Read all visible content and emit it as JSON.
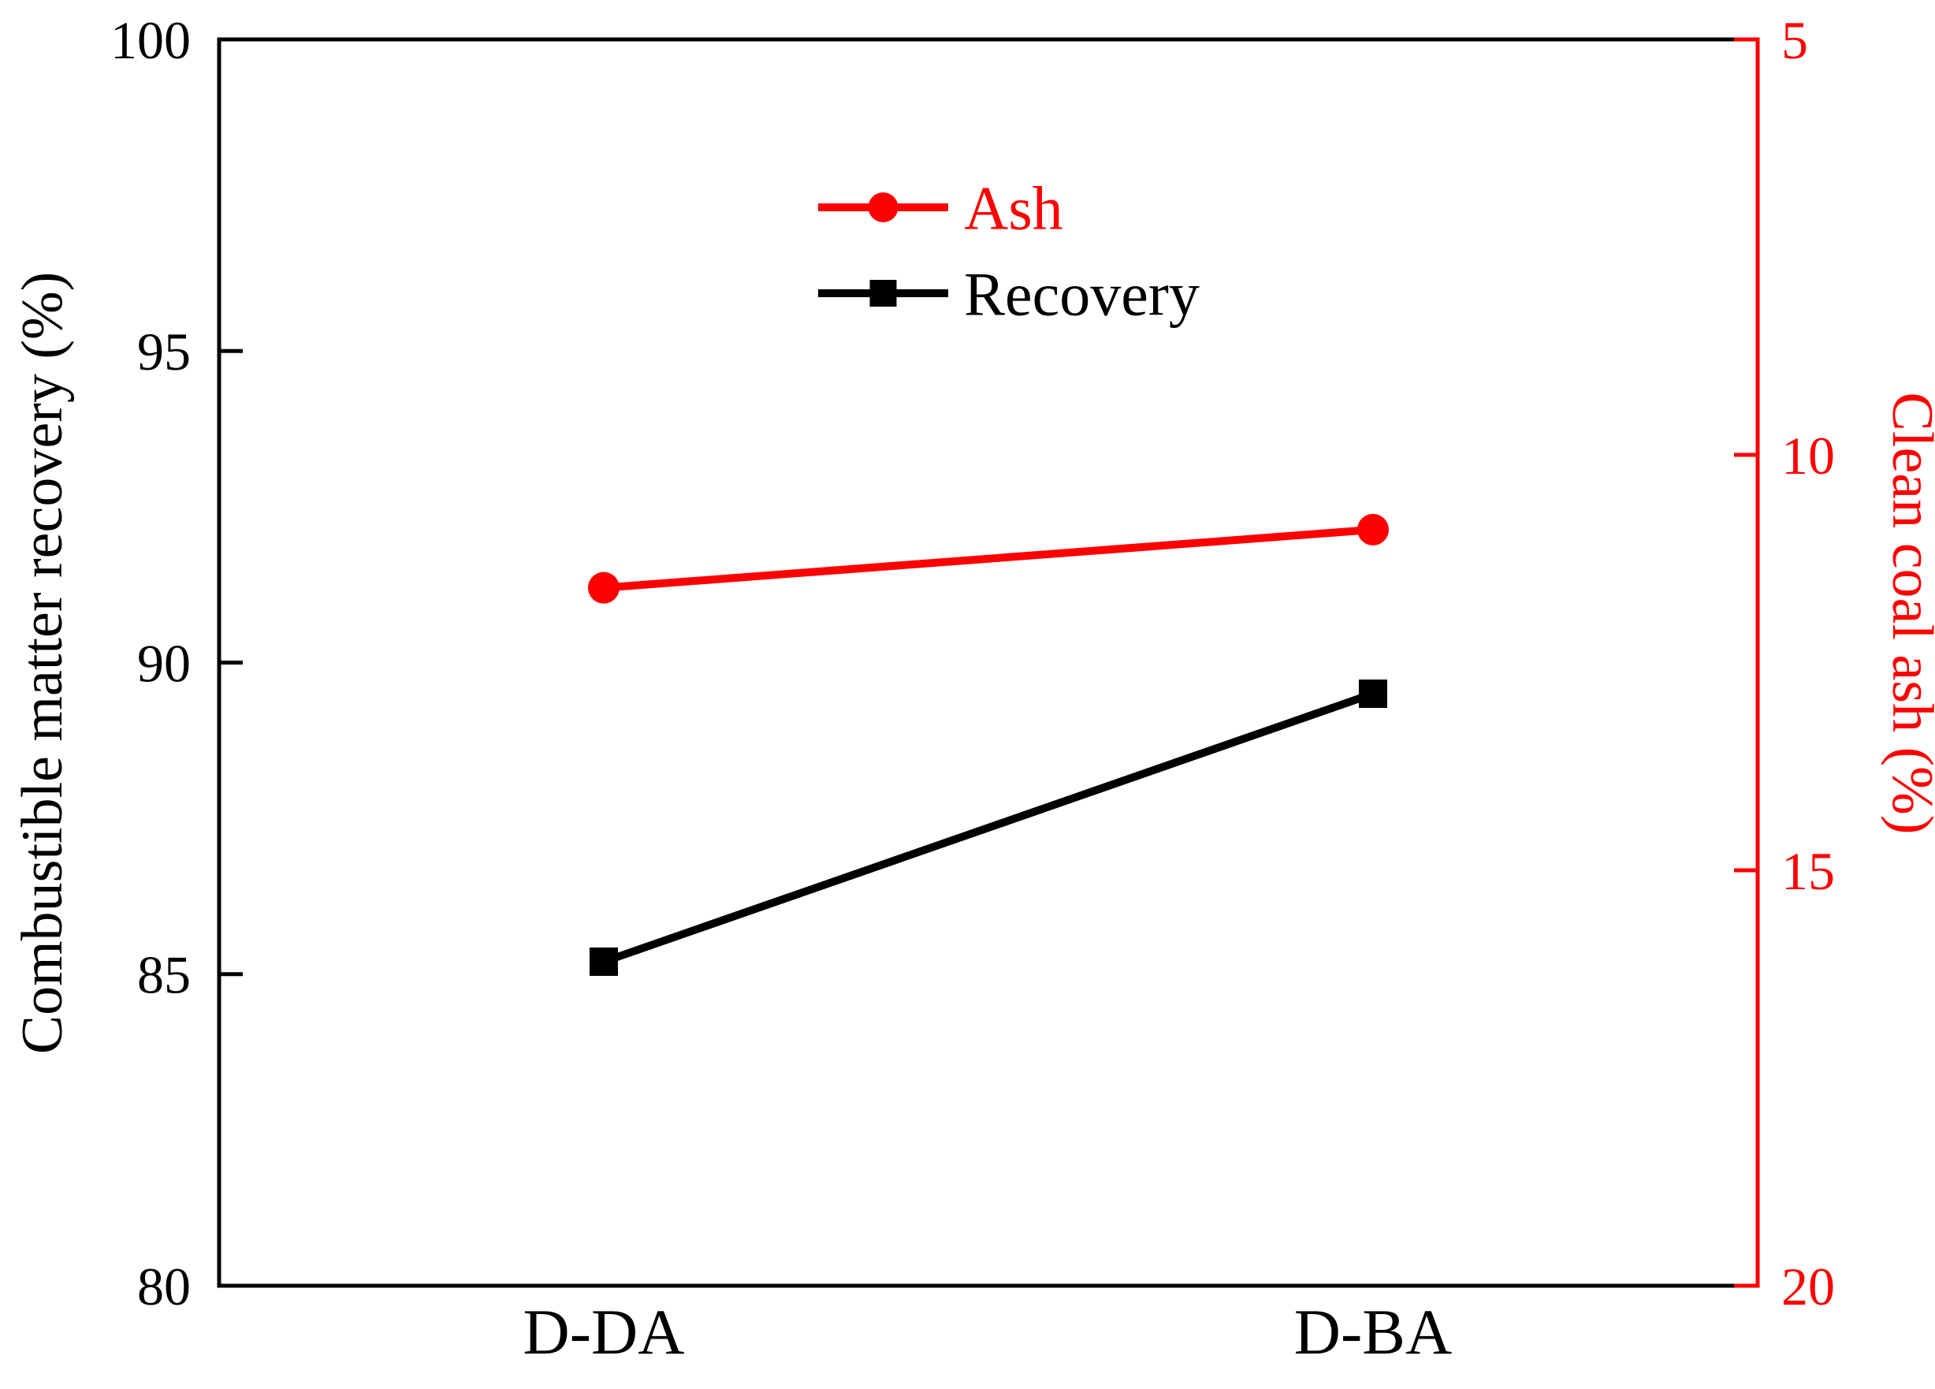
{
  "chart_data": {
    "type": "line",
    "title": "",
    "categories": [
      "D-DA",
      "D-BA"
    ],
    "series": [
      {
        "name": "Ash",
        "axis": "right",
        "color": "#ff0000",
        "marker": "circle",
        "values": [
          11.6,
          10.9
        ]
      },
      {
        "name": "Recovery",
        "axis": "left",
        "color": "#000000",
        "marker": "square",
        "values": [
          85.2,
          89.5
        ]
      }
    ],
    "axes": {
      "left": {
        "label": "Combustible matter recovery (%)",
        "ticks": [
          100,
          95,
          90,
          85,
          80
        ],
        "range": [
          80,
          100
        ],
        "reversed": false,
        "color": "#000000"
      },
      "right": {
        "label": "Clean coal ash (%)",
        "ticks": [
          5,
          10,
          15,
          20
        ],
        "range": [
          5,
          20
        ],
        "reversed": true,
        "color": "#ff0000"
      },
      "x": {
        "label": ""
      }
    },
    "legend": {
      "position": "upper center",
      "frame": false,
      "entries": [
        {
          "label": "Ash",
          "color": "#ff0000",
          "marker": "circle"
        },
        {
          "label": "Recovery",
          "color": "#000000",
          "marker": "square"
        }
      ]
    },
    "grid": false,
    "background": "#ffffff"
  }
}
